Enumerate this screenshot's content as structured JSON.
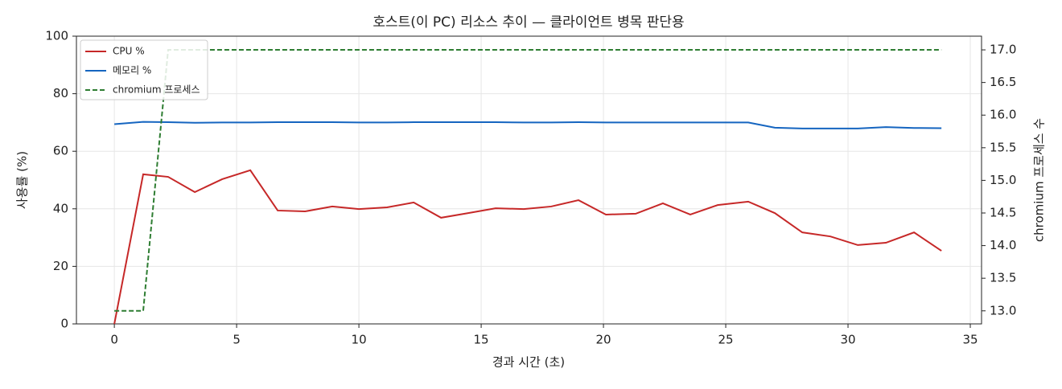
{
  "chart_data": {
    "type": "line",
    "title": "호스트(이 PC) 리소스 추이 — 클라이언트 병목 판단용",
    "x_label": "경과 시간 (초)",
    "y_label": "사용률 (%)",
    "y2_label": "chromium 프로세스 수",
    "x": [
      0,
      1.18,
      2.2,
      3.29,
      4.41,
      5.56,
      6.68,
      7.8,
      8.91,
      10.0,
      11.15,
      12.24,
      13.36,
      14.47,
      15.59,
      16.74,
      17.86,
      18.98,
      20.1,
      21.32,
      22.43,
      23.55,
      24.67,
      25.92,
      27.01,
      28.13,
      29.28,
      30.4,
      31.55,
      32.7,
      33.82
    ],
    "series": [
      {
        "name": "CPU %",
        "color": "#c62828",
        "dash": false,
        "values": [
          0,
          52,
          51.1,
          45.8,
          50.3,
          53.4,
          39.4,
          39.1,
          40.8,
          39.9,
          40.5,
          42.2,
          36.9,
          38.5,
          40.2,
          39.9,
          40.8,
          43.0,
          38.0,
          38.3,
          41.9,
          38.0,
          41.3,
          42.5,
          38.5,
          31.8,
          30.4,
          27.4,
          28.2,
          31.8,
          25.4
        ]
      },
      {
        "name": "메모리 %",
        "color": "#1565c0",
        "dash": false,
        "values": [
          69.4,
          70.2,
          70.1,
          69.9,
          70.0,
          70.0,
          70.1,
          70.1,
          70.1,
          70.0,
          70.0,
          70.1,
          70.1,
          70.1,
          70.1,
          70.0,
          70.0,
          70.1,
          70.0,
          70.0,
          70.0,
          70.0,
          70.0,
          70.0,
          68.2,
          67.9,
          67.9,
          67.9,
          68.4,
          68.1,
          68.0
        ]
      },
      {
        "name": "chromium 프로세스",
        "color": "#2e7d32",
        "dash": true,
        "axis": "y2",
        "values": [
          13,
          13,
          17,
          17,
          17,
          17,
          17,
          17,
          17,
          17,
          17,
          17,
          17,
          17,
          17,
          17,
          17,
          17,
          17,
          17,
          17,
          17,
          17,
          17,
          17,
          17,
          17,
          17,
          17,
          17,
          17
        ]
      }
    ],
    "xlim": [
      -1.55,
      35.46
    ],
    "xticks": [
      0,
      5,
      10,
      15,
      20,
      25,
      30,
      35
    ],
    "ylim": [
      0,
      100
    ],
    "yticks": [
      0,
      20,
      40,
      60,
      80,
      100
    ],
    "y2lim": [
      12.8,
      17.21
    ],
    "y2ticks": [
      {
        "value": 13,
        "label": "13.0"
      },
      13.5,
      {
        "value": 14,
        "label": "14.0"
      },
      14.5,
      {
        "value": 15,
        "label": "15.0"
      },
      15.5,
      {
        "value": 16,
        "label": "16.0"
      },
      16.5,
      {
        "value": 17,
        "label": "17.0"
      }
    ],
    "grid": true,
    "legend": "upper left"
  }
}
